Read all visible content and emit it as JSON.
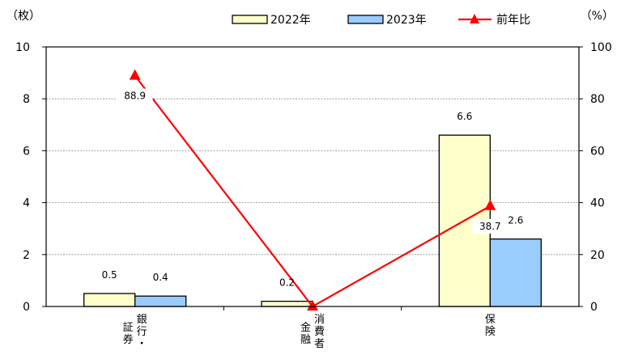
{
  "chart_data": {
    "type": "bar",
    "categories": [
      "銀行・証券",
      "消費者金融",
      "保険"
    ],
    "category_columns": [
      [
        [
          "銀",
          "行",
          "・"
        ],
        [
          "証",
          "券"
        ]
      ],
      [
        [
          "消",
          "費",
          "者"
        ],
        [
          "金",
          "融"
        ]
      ],
      [
        [
          "保",
          "険"
        ]
      ]
    ],
    "series": [
      {
        "name": "2022年",
        "values": [
          0.5,
          0.2,
          6.6
        ],
        "value_labels": [
          "0.5",
          "0.2",
          "6.6"
        ],
        "color": "#FFFFCC"
      },
      {
        "name": "2023年",
        "values": [
          0.4,
          0.0,
          2.6
        ],
        "value_labels": [
          "0.4",
          "",
          "2.6"
        ],
        "color": "#99CCFF"
      }
    ],
    "line_series": {
      "name": "前年比",
      "values": [
        88.9,
        0,
        38.7
      ],
      "value_labels": [
        "88.9",
        "",
        "38.7"
      ],
      "color": "#FF0000",
      "axis": "right"
    },
    "left_axis": {
      "unit": "（枚）",
      "ylim": [
        0,
        10
      ],
      "ticks": [
        "0",
        "2",
        "4",
        "6",
        "8",
        "10"
      ]
    },
    "right_axis": {
      "unit": "（%）",
      "ylim": [
        0,
        100
      ],
      "ticks": [
        "0",
        "20",
        "40",
        "60",
        "80",
        "100"
      ]
    },
    "grid": true,
    "legend_position": "top"
  }
}
